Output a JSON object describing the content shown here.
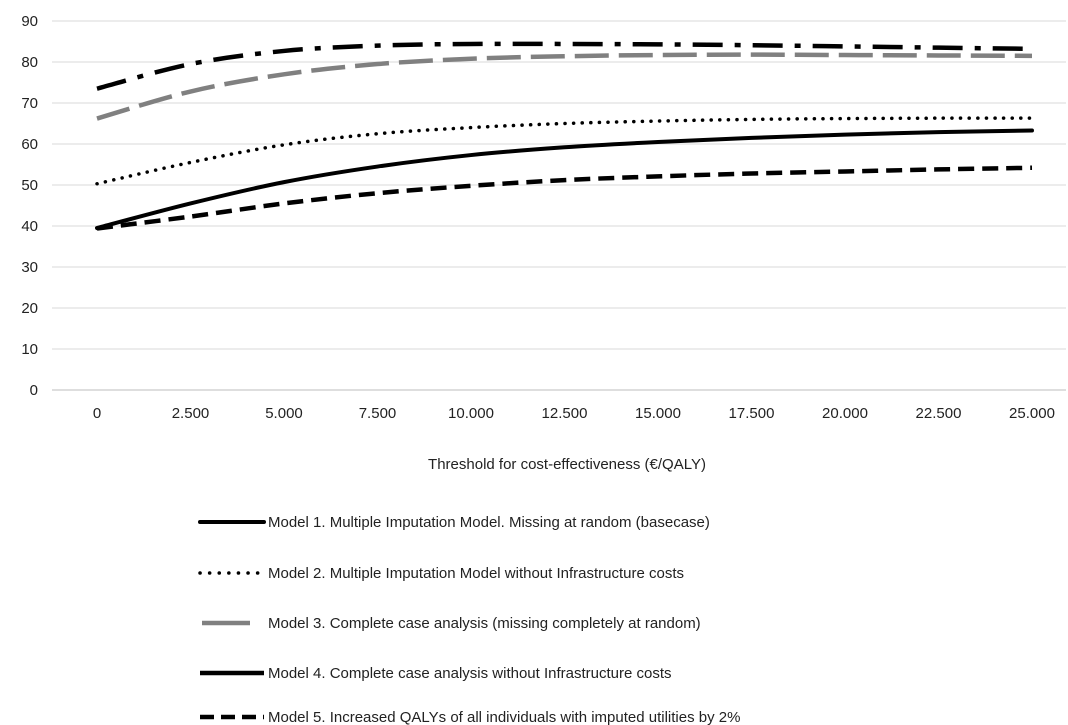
{
  "chart_data": {
    "type": "line",
    "title": "",
    "xlabel": "Threshold for cost-effectiveness (€/QALY)",
    "ylabel": "",
    "ylim": [
      0,
      90
    ],
    "yticks": [
      0,
      10,
      20,
      30,
      40,
      50,
      60,
      70,
      80,
      90
    ],
    "grid": "horizontal",
    "legend_position": "bottom",
    "categories": [
      "0",
      "2.500",
      "5.000",
      "7.500",
      "10.000",
      "12.500",
      "15.000",
      "17.500",
      "20.000",
      "22.500",
      "25.000"
    ],
    "series": [
      {
        "name": "Model 1. Multiple Imputation Model. Missing at random (basecase)",
        "color": "#000000",
        "style": "solid",
        "values": [
          39.5,
          45.5,
          50.7,
          54.5,
          57.3,
          59.2,
          60.5,
          61.5,
          62.3,
          62.9,
          63.3
        ]
      },
      {
        "name": "Model 2. Multiple Imputation Model without Infrastructure costs",
        "color": "#000000",
        "style": "dotted",
        "values": [
          50.3,
          55.5,
          59.8,
          62.5,
          64.0,
          65.0,
          65.6,
          66.0,
          66.2,
          66.3,
          66.3
        ]
      },
      {
        "name": "Model 3. Complete case analysis (missing completely at random)",
        "color": "#808080",
        "style": "long-dash",
        "values": [
          66.2,
          72.8,
          77.0,
          79.5,
          80.8,
          81.4,
          81.7,
          81.8,
          81.7,
          81.6,
          81.5
        ]
      },
      {
        "name": "Model 4. Complete case analysis without Infrastructure costs",
        "color": "#000000",
        "style": "dash-dot",
        "values": [
          73.5,
          79.5,
          82.7,
          84.0,
          84.4,
          84.4,
          84.3,
          84.1,
          83.8,
          83.5,
          83.2
        ]
      },
      {
        "name": "Model 5. Increased QALYs of all individuals with imputed utilities by 2%",
        "color": "#000000",
        "style": "dashed",
        "values": [
          39.4,
          42.3,
          45.5,
          48.0,
          49.8,
          51.2,
          52.1,
          52.8,
          53.3,
          53.8,
          54.2
        ]
      }
    ]
  }
}
